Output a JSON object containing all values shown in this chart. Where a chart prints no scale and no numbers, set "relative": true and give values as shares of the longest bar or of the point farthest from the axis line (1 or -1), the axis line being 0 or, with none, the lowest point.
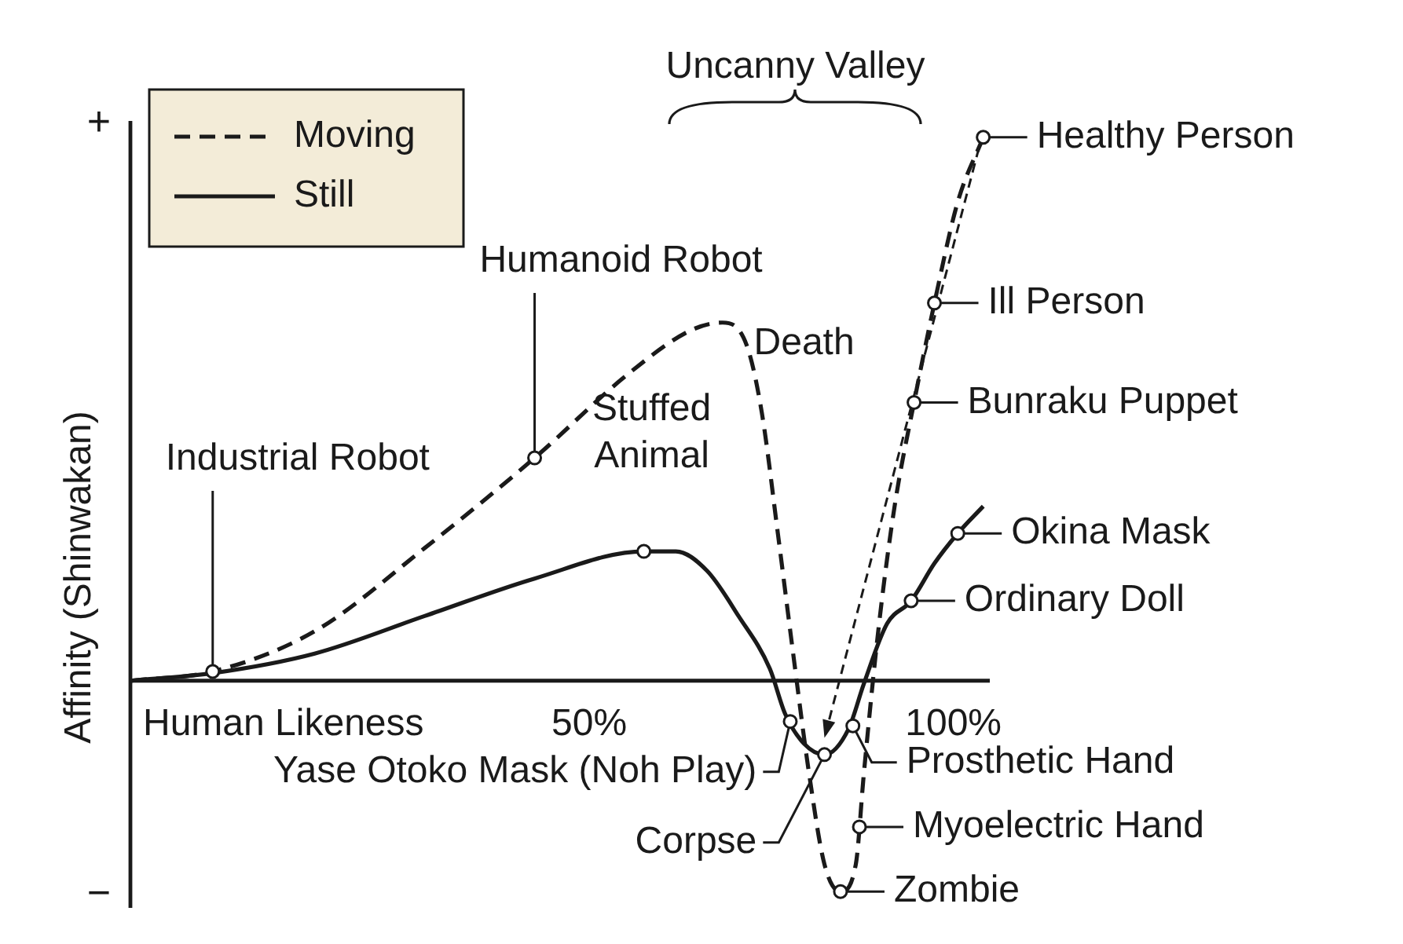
{
  "chart_data": {
    "type": "line",
    "relative": true,
    "ylabel": "Affinity (Shinwakan)",
    "xlabel": "Human Likeness",
    "xlim": [
      -13,
      105
    ],
    "xticks": [
      {
        "value": 50,
        "label": "50%"
      },
      {
        "value": 100,
        "label": "100%"
      }
    ],
    "legend": "top left",
    "marker": "none",
    "grid": false,
    "series": [
      {
        "name": "Moving",
        "color": "#1a1a1a",
        "line_style": "dashed",
        "x": [
          -12.9,
          -1.7,
          12.3,
          27.4,
          42.5,
          55.4,
          64.0,
          68.3,
          71.6,
          73.7,
          75.9,
          78.0,
          80.2,
          82.3,
          84.5,
          86.6,
          87.7,
          89.8,
          92.0,
          94.6,
          97.4,
          100.6,
          104.1
        ],
        "values": [
          0,
          0.017,
          0.091,
          0.244,
          0.41,
          0.565,
          0.645,
          0.659,
          0.618,
          0.493,
          0.271,
          0.05,
          -0.172,
          -0.338,
          -0.388,
          -0.338,
          -0.172,
          0.105,
          0.327,
          0.512,
          0.695,
          0.881,
          1
        ]
      },
      {
        "name": "Still",
        "color": "#1a1a1a",
        "line_style": "solid",
        "x": [
          -12.9,
          -1.7,
          12.3,
          27.4,
          42.5,
          57.5,
          61.9,
          66.2,
          70.5,
          74.8,
          76.9,
          79.5,
          82.3,
          85.6,
          87.7,
          90.9,
          94.2,
          97.4,
          100.6,
          104.1
        ],
        "values": [
          0,
          0.014,
          0.05,
          0.119,
          0.188,
          0.238,
          0.238,
          0.202,
          0.119,
          0.022,
          -0.061,
          -0.116,
          -0.136,
          -0.089,
          -0.006,
          0.105,
          0.147,
          0.216,
          0.271,
          0.321
        ]
      }
    ],
    "annotations": [
      "Uncanny Valley",
      "Death",
      "+",
      "−",
      {
        "text": "Industrial Robot",
        "x": -1.7,
        "y": 0.017
      },
      {
        "text": "Humanoid Robot",
        "x": 42.5,
        "y": 0.41
      },
      {
        "text": "Stuffed Animal",
        "x": 57.5,
        "y": 0.238
      },
      {
        "text": "Healthy Person",
        "x": 104.1,
        "y": 1
      },
      {
        "text": "Ill Person",
        "x": 97.4,
        "y": 0.695
      },
      {
        "text": "Bunraku Puppet",
        "x": 94.6,
        "y": 0.512
      },
      {
        "text": "Okina Mask",
        "x": 100.6,
        "y": 0.271
      },
      {
        "text": "Ordinary Doll",
        "x": 94.2,
        "y": 0.147
      },
      {
        "text": "Prosthetic Hand",
        "x": 86.2,
        "y": -0.083
      },
      {
        "text": "Myoelectric Hand",
        "x": 87.1,
        "y": -0.269
      },
      {
        "text": "Zombie",
        "x": 84.5,
        "y": -0.388
      },
      {
        "text": "Yase Otoko Mask (Noh Play)",
        "x": 77.6,
        "y": -0.075
      },
      {
        "text": "Corpse",
        "x": 82.3,
        "y": -0.136
      }
    ]
  }
}
